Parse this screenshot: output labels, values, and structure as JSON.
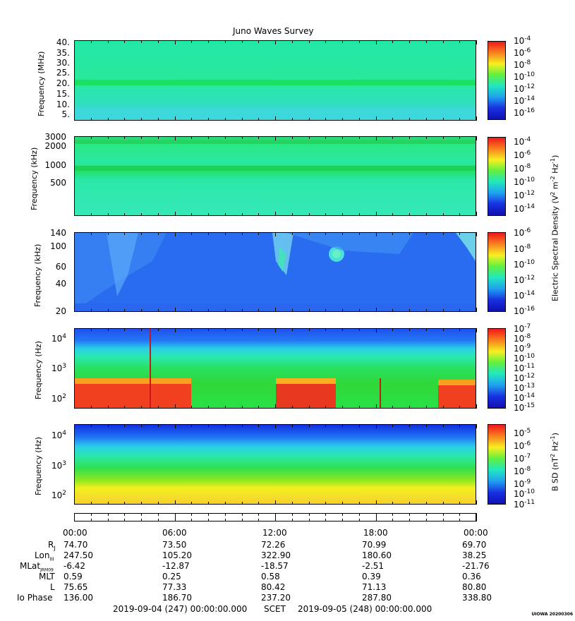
{
  "title": "Juno Waves Survey",
  "panels": [
    {
      "ylabel": "Frequency (MHz)",
      "yticks": [
        "40.",
        "35.",
        "30.",
        "25.",
        "20.",
        "15.",
        "10.",
        "5."
      ]
    },
    {
      "ylabel": "Frequency (kHz)",
      "yticks": [
        "3000",
        "2000",
        "1000",
        "500"
      ]
    },
    {
      "ylabel": "Frequency (kHz)",
      "yticks": [
        "140",
        "100",
        "60",
        "40",
        "20"
      ]
    },
    {
      "ylabel": "Frequency (Hz)",
      "yticks": [
        "10",
        "10",
        "10"
      ],
      "yexp": [
        "4",
        "3",
        "2"
      ]
    },
    {
      "ylabel": "Frequency (Hz)",
      "yticks": [
        "10",
        "10",
        "10"
      ],
      "yexp": [
        "4",
        "3",
        "2"
      ]
    }
  ],
  "colorbars": [
    {
      "exps": [
        "-4",
        "-6",
        "-8",
        "-10",
        "-12",
        "-14",
        "-16"
      ]
    },
    {
      "exps": [
        "-4",
        "-6",
        "-8",
        "-10",
        "-12",
        "-14"
      ]
    },
    {
      "exps": [
        "-6",
        "-8",
        "-10",
        "-12",
        "-14",
        "-16"
      ]
    },
    {
      "exps": [
        "-7",
        "-8",
        "-9",
        "-10",
        "-11",
        "-12",
        "-13",
        "-14",
        "-15"
      ]
    },
    {
      "exps": [
        "-5",
        "-6",
        "-7",
        "-8",
        "-9",
        "-10",
        "-11"
      ]
    }
  ],
  "right_labels": {
    "electric": "Electric Spectral Density (V",
    "electric_tail": " m",
    "electric_tail2": " Hz",
    "bsd": "B SD (nT",
    "bsd_tail": " Hz"
  },
  "x_times": [
    "00:00",
    "06:00",
    "12:00",
    "18:00",
    "00:00"
  ],
  "ephemeris": {
    "labels": [
      "R",
      "Lon",
      "MLat",
      "MLT",
      "L",
      "Io Phase"
    ],
    "label_subs": [
      "J",
      "III",
      "JRM09",
      "",
      "",
      ""
    ],
    "rows": [
      [
        "74.70",
        "73.50",
        "72.26",
        "70.99",
        "69.70"
      ],
      [
        "247.50",
        "105.20",
        "322.90",
        "180.60",
        "38.25"
      ],
      [
        "-6.42",
        "-12.87",
        "-18.57",
        "-2.51",
        "-21.76"
      ],
      [
        "0.59",
        "0.25",
        "0.58",
        "0.39",
        "0.36"
      ],
      [
        "75.65",
        "77.33",
        "80.42",
        "71.13",
        "80.80"
      ],
      [
        "136.00",
        "186.70",
        "237.20",
        "287.80",
        "338.80"
      ]
    ]
  },
  "footer": {
    "start": "2019-09-04 (247) 00:00:00.000",
    "mid": "SCET",
    "end": "2019-09-05 (248) 00:00:00.000"
  },
  "stamp": "UIOWA 20200306",
  "chart_data": {
    "type": "heatmap",
    "title": "Juno Waves Survey",
    "x_range": [
      "2019-09-04 00:00",
      "2019-09-05 00:00"
    ],
    "xlabel": "SCET",
    "panels": [
      {
        "ylabel": "Frequency (MHz)",
        "yrange": [
          3,
          41
        ],
        "scale": "linear",
        "colorbar_range_exp": [
          -16,
          -4
        ]
      },
      {
        "ylabel": "Frequency (kHz)",
        "yrange": [
          150,
          3000
        ],
        "scale": "log",
        "colorbar_range_exp": [
          -15,
          -4
        ]
      },
      {
        "ylabel": "Frequency (kHz)",
        "yrange": [
          20,
          140
        ],
        "scale": "log",
        "colorbar_range_exp": [
          -16,
          -6
        ]
      },
      {
        "ylabel": "Frequency (Hz)",
        "yrange": [
          50,
          20000
        ],
        "scale": "log",
        "colorbar_range_exp": [
          -15,
          -7
        ]
      },
      {
        "ylabel": "Frequency (Hz)",
        "yrange": [
          50,
          20000
        ],
        "scale": "log",
        "colorbar_range_exp": [
          -11,
          -5
        ]
      }
    ]
  }
}
